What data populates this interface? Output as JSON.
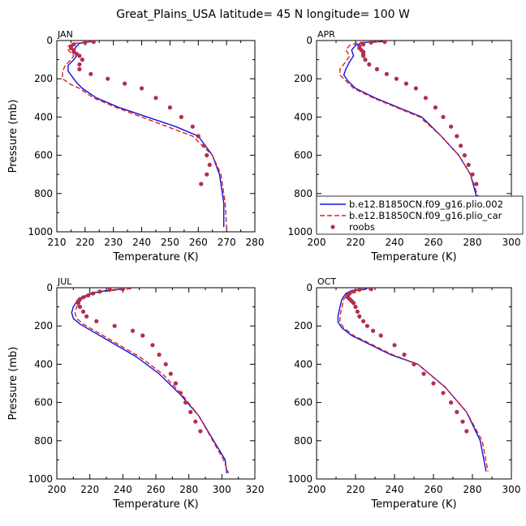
{
  "figure": {
    "title": "Great_Plains_USA  latitude= 45 N longitude= 100 W"
  },
  "chart_data": [
    {
      "type": "line",
      "panel": "JAN",
      "xlabel": "Temperature (K)",
      "ylabel": "Pressure (mb)",
      "xlim": [
        210,
        280
      ],
      "ylim": [
        1000,
        0
      ],
      "xticks": [
        210,
        220,
        230,
        240,
        250,
        260,
        270,
        280
      ],
      "yticks": [
        0,
        200,
        400,
        600,
        800,
        1000
      ],
      "series": [
        {
          "name": "b.e12.B1850CN.f09_g16.plio.002",
          "style": "solid",
          "color": "#1010e0",
          "x": [
            222,
            218,
            217,
            216,
            217,
            216,
            214,
            214,
            216,
            217,
            219,
            224,
            232,
            242,
            252,
            260,
            265,
            267.5,
            269,
            269
          ],
          "y": [
            5,
            15,
            30,
            50,
            80,
            100,
            130,
            160,
            200,
            220,
            250,
            300,
            350,
            400,
            450,
            500,
            600,
            700,
            850,
            975
          ]
        },
        {
          "name": "b.e12.B1850CN.f09_g16.plio_car",
          "style": "dashed",
          "color": "#e02020",
          "x": [
            223,
            216,
            214,
            214,
            216,
            215,
            213,
            212,
            212,
            215,
            218,
            223,
            231,
            240,
            249,
            258,
            265,
            268,
            269.5,
            270
          ],
          "y": [
            5,
            15,
            30,
            50,
            80,
            100,
            130,
            160,
            200,
            230,
            250,
            300,
            350,
            400,
            450,
            500,
            600,
            700,
            850,
            975
          ]
        },
        {
          "name": "roobs",
          "style": "points",
          "color": "#b03050",
          "x": [
            223,
            220,
            216,
            215,
            215,
            216,
            216,
            217,
            218,
            219,
            218,
            218,
            222,
            228,
            234,
            240,
            245,
            250,
            254,
            258,
            260,
            262,
            263,
            264,
            263,
            261
          ],
          "y": [
            7,
            10,
            20,
            30,
            40,
            50,
            60,
            70,
            80,
            100,
            125,
            150,
            175,
            200,
            225,
            250,
            300,
            350,
            400,
            450,
            500,
            550,
            600,
            650,
            700,
            750
          ]
        }
      ]
    },
    {
      "type": "line",
      "panel": "APR",
      "xlabel": "Temperature (K)",
      "ylabel": "",
      "xlim": [
        200,
        300
      ],
      "ylim": [
        1000,
        0
      ],
      "xticks": [
        200,
        220,
        240,
        260,
        280,
        300
      ],
      "yticks": [
        0,
        200,
        400,
        600,
        800,
        1000
      ],
      "series": [
        {
          "name": "b.e12.B1850CN.f09_g16.plio.002",
          "style": "solid",
          "color": "#1010e0",
          "x": [
            234,
            224,
            220,
            218,
            219,
            217,
            215,
            214,
            216,
            220,
            230,
            242,
            254,
            264,
            273,
            279,
            283,
            285.5
          ],
          "y": [
            5,
            10,
            25,
            50,
            80,
            110,
            150,
            180,
            210,
            250,
            300,
            350,
            400,
            500,
            600,
            700,
            850,
            960
          ]
        },
        {
          "name": "b.e12.B1850CN.f09_g16.plio_car",
          "style": "dashed",
          "color": "#e02020",
          "x": [
            236,
            222,
            217,
            215,
            217,
            215,
            212,
            212,
            215,
            219,
            229,
            241,
            253,
            264,
            273,
            279,
            284,
            286
          ],
          "y": [
            5,
            10,
            25,
            50,
            80,
            110,
            150,
            180,
            210,
            250,
            300,
            350,
            400,
            500,
            600,
            700,
            850,
            960
          ]
        },
        {
          "name": "roobs",
          "style": "points",
          "color": "#b03050",
          "x": [
            235,
            228,
            224,
            222,
            222,
            223,
            224,
            224,
            224,
            225,
            227,
            231,
            236,
            241,
            246,
            251,
            256,
            261,
            265,
            269,
            272,
            274,
            276,
            278,
            280,
            282
          ],
          "y": [
            7,
            10,
            20,
            30,
            40,
            50,
            60,
            70,
            80,
            100,
            125,
            150,
            175,
            200,
            225,
            250,
            300,
            350,
            400,
            450,
            500,
            550,
            600,
            650,
            700,
            750
          ]
        }
      ]
    },
    {
      "type": "line",
      "panel": "JUL",
      "xlabel": "Temperature (K)",
      "ylabel": "Pressure (mb)",
      "xlim": [
        200,
        320
      ],
      "ylim": [
        1000,
        0
      ],
      "xticks": [
        200,
        220,
        240,
        260,
        280,
        300,
        320
      ],
      "yticks": [
        0,
        200,
        400,
        600,
        800,
        1000
      ],
      "series": [
        {
          "name": "b.e12.B1850CN.f09_g16.plio.002",
          "style": "solid",
          "color": "#1010e0",
          "x": [
            241,
            230,
            220,
            213,
            210,
            209,
            210,
            214,
            222,
            234,
            248,
            262,
            275,
            286,
            302,
            303
          ],
          "y": [
            5,
            15,
            30,
            60,
            100,
            130,
            160,
            190,
            230,
            290,
            360,
            450,
            560,
            670,
            900,
            970
          ]
        },
        {
          "name": "b.e12.B1850CN.f09_g16.plio_car",
          "style": "dashed",
          "color": "#e02020",
          "x": [
            245,
            233,
            222,
            215,
            212,
            211,
            212,
            216,
            224,
            236,
            250,
            264,
            276,
            286,
            301,
            304
          ],
          "y": [
            5,
            15,
            30,
            60,
            100,
            130,
            160,
            190,
            230,
            290,
            360,
            450,
            560,
            670,
            900,
            970
          ]
        },
        {
          "name": "roobs",
          "style": "points",
          "color": "#b03050",
          "x": [
            240,
            232,
            226,
            222,
            219,
            216,
            214,
            213,
            213,
            214,
            216,
            218,
            224,
            235,
            246,
            252,
            258,
            262,
            266,
            269,
            272,
            275,
            278,
            281,
            284,
            287
          ],
          "y": [
            7,
            10,
            20,
            30,
            40,
            50,
            60,
            70,
            80,
            100,
            125,
            150,
            175,
            200,
            225,
            250,
            300,
            350,
            400,
            450,
            500,
            550,
            600,
            650,
            700,
            750
          ]
        }
      ]
    },
    {
      "type": "line",
      "panel": "OCT",
      "xlabel": "Temperature (K)",
      "ylabel": "",
      "xlim": [
        200,
        300
      ],
      "ylim": [
        1000,
        0
      ],
      "xticks": [
        200,
        220,
        240,
        260,
        280,
        300
      ],
      "yticks": [
        0,
        200,
        400,
        600,
        800,
        1000
      ],
      "series": [
        {
          "name": "b.e12.B1850CN.f09_g16.plio.002",
          "style": "solid",
          "color": "#1010e0",
          "x": [
            226,
            218,
            215,
            213,
            212,
            211,
            211,
            213,
            218,
            228,
            238,
            252,
            266,
            277,
            284,
            287
          ],
          "y": [
            5,
            15,
            30,
            60,
            100,
            150,
            180,
            210,
            250,
            300,
            350,
            400,
            520,
            650,
            800,
            960
          ]
        },
        {
          "name": "b.e12.B1850CN.f09_g16.plio_car",
          "style": "dashed",
          "color": "#e02020",
          "x": [
            229,
            220,
            216,
            214,
            213,
            212,
            212,
            214,
            219,
            229,
            239,
            252,
            266,
            277,
            285,
            288
          ],
          "y": [
            5,
            15,
            30,
            60,
            100,
            150,
            180,
            210,
            250,
            300,
            350,
            400,
            520,
            650,
            800,
            960
          ]
        },
        {
          "name": "roobs",
          "style": "points",
          "color": "#b03050",
          "x": [
            228,
            222,
            219,
            217,
            216,
            216,
            217,
            218,
            219,
            220,
            221,
            222,
            224,
            226,
            229,
            233,
            240,
            245,
            250,
            255,
            260,
            265,
            269,
            272,
            275,
            277
          ],
          "y": [
            7,
            10,
            20,
            30,
            40,
            50,
            60,
            70,
            80,
            100,
            125,
            150,
            175,
            200,
            225,
            250,
            300,
            350,
            400,
            450,
            500,
            550,
            600,
            650,
            700,
            750
          ]
        }
      ]
    }
  ],
  "legend": {
    "entries": [
      {
        "label": "b.e12.B1850CN.f09_g16.plio.002",
        "style": "solid",
        "color": "#1010e0"
      },
      {
        "label": "b.e12.B1850CN.f09_g16.plio_car",
        "style": "dashed",
        "color": "#e02020"
      },
      {
        "label": "roobs",
        "style": "points",
        "color": "#b03050"
      }
    ]
  }
}
